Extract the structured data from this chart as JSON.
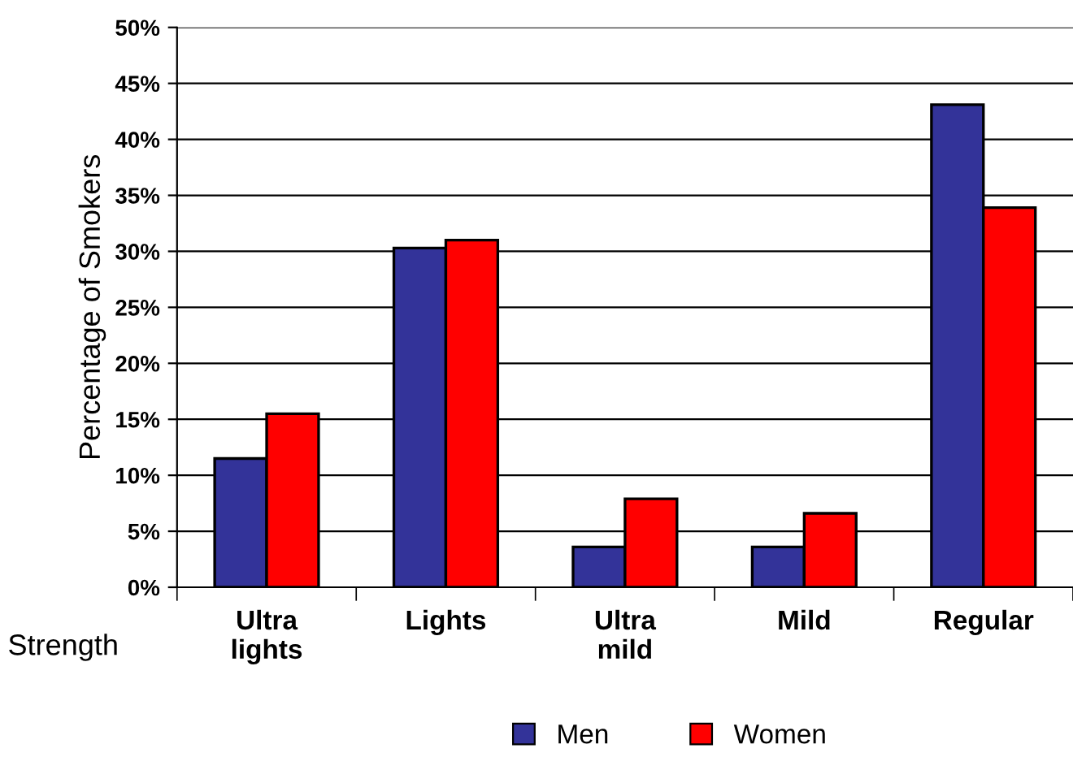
{
  "chart_data": {
    "type": "bar",
    "categories": [
      "Ultra\nlights",
      "Lights",
      "Ultra\nmild",
      "Mild",
      "Regular"
    ],
    "xlabel": "Strength",
    "ylabel": "Percentage of Smokers",
    "series": [
      {
        "name": "Men",
        "color": "#333399",
        "values": [
          11.5,
          30.3,
          3.6,
          3.6,
          43.1
        ]
      },
      {
        "name": "Women",
        "color": "#ff0000",
        "values": [
          15.5,
          31.0,
          7.9,
          6.6,
          33.9
        ]
      }
    ],
    "ylim": [
      0,
      50
    ],
    "yticks": [
      {
        "value": 0,
        "label": "0%"
      },
      {
        "value": 5,
        "label": "5%"
      },
      {
        "value": 10,
        "label": "10%"
      },
      {
        "value": 15,
        "label": "15%"
      },
      {
        "value": 20,
        "label": "20%"
      },
      {
        "value": 25,
        "label": "25%"
      },
      {
        "value": 30,
        "label": "30%"
      },
      {
        "value": 35,
        "label": "35%"
      },
      {
        "value": 40,
        "label": "40%"
      },
      {
        "value": 45,
        "label": "45%"
      },
      {
        "value": 50,
        "label": "50%"
      }
    ],
    "grid": "y",
    "legend": "bottom"
  }
}
